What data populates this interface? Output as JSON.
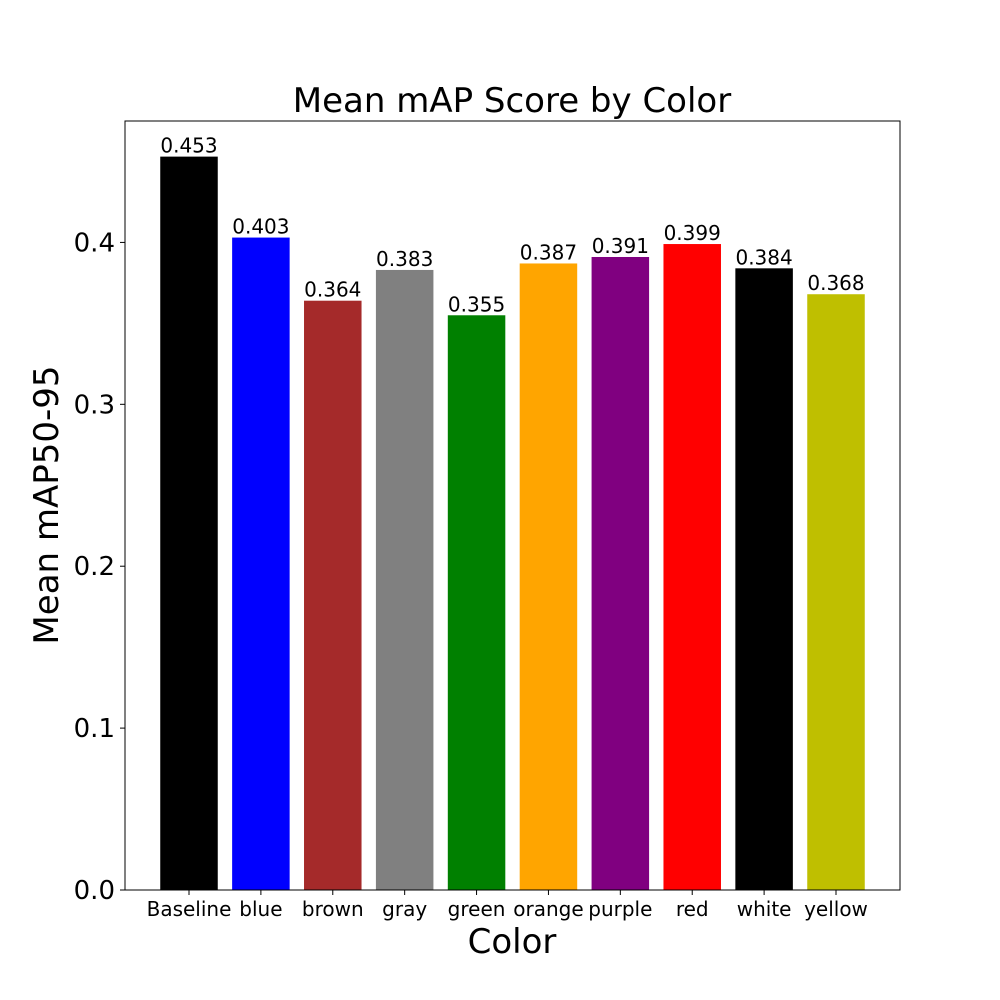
{
  "chart_data": {
    "type": "bar",
    "title": "Mean mAP Score by Color",
    "xlabel": "Color",
    "ylabel": "Mean mAP50-95",
    "categories": [
      "Baseline",
      "blue",
      "brown",
      "gray",
      "green",
      "orange",
      "purple",
      "red",
      "white",
      "yellow"
    ],
    "values": [
      0.453,
      0.403,
      0.364,
      0.383,
      0.355,
      0.387,
      0.391,
      0.399,
      0.384,
      0.368
    ],
    "value_labels": [
      "0.453",
      "0.403",
      "0.364",
      "0.383",
      "0.355",
      "0.387",
      "0.391",
      "0.399",
      "0.384",
      "0.368"
    ],
    "colors": [
      "#000000",
      "#0000ff",
      "#a52a2a",
      "#808080",
      "#008000",
      "#ffa500",
      "#800080",
      "#ff0000",
      "#000000",
      "#bfbf00"
    ],
    "ylim": [
      0,
      0.475
    ],
    "yticks": [
      0.0,
      0.1,
      0.2,
      0.3,
      0.4
    ],
    "ytick_labels": [
      "0.0",
      "0.1",
      "0.2",
      "0.3",
      "0.4"
    ],
    "grid": false,
    "legend": false
  }
}
